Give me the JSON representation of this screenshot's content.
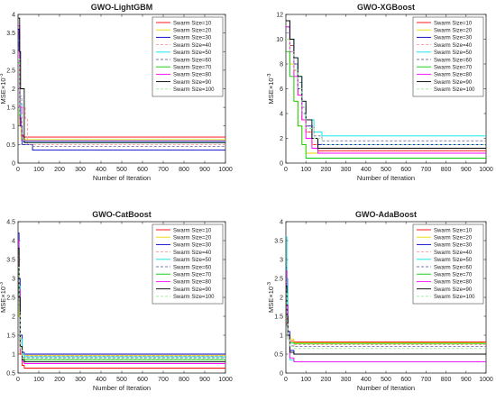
{
  "figure": {
    "background": "#ffffff"
  },
  "legend_labels": [
    "Swarm Size=10",
    "Swarm Size=20",
    "Swarm Size=30",
    "Swarm Size=40",
    "Swarm Size=50",
    "Swarm Size=60",
    "Swarm Size=70",
    "Swarm Size=80",
    "Swarm Size=90",
    "Swarm Size=100"
  ],
  "series_styles": [
    {
      "color": "#ff0000",
      "dash": "solid"
    },
    {
      "color": "#e6d800",
      "dash": "solid"
    },
    {
      "color": "#0000cc",
      "dash": "solid"
    },
    {
      "color": "#ff9999",
      "dash": "dashed"
    },
    {
      "color": "#00e5e5",
      "dash": "solid"
    },
    {
      "color": "#7777aa",
      "dash": "dashed"
    },
    {
      "color": "#00cc00",
      "dash": "solid"
    },
    {
      "color": "#ff00ff",
      "dash": "solid"
    },
    {
      "color": "#000000",
      "dash": "solid"
    },
    {
      "color": "#99ee99",
      "dash": "dashed"
    }
  ],
  "chart_data": [
    {
      "type": "line",
      "title": "GWO-LightGBM",
      "xlabel": "Number of Iteration",
      "ylabel_main": "MSE",
      "ylabel_scale": "×10",
      "ylabel_exp": "-3",
      "xlim": [
        0,
        1000
      ],
      "ylim": [
        0,
        4
      ],
      "xticks": [
        0,
        100,
        200,
        300,
        400,
        500,
        600,
        700,
        800,
        900,
        1000
      ],
      "yticks": [
        0,
        0.5,
        1,
        1.5,
        2,
        2.5,
        3,
        3.5,
        4
      ],
      "yticklabels": [
        "0",
        "0.5",
        "1",
        "1.5",
        "2",
        "2.5",
        "3",
        "3.5",
        "4"
      ],
      "legend_position": "top-right",
      "series": [
        {
          "name": "Swarm Size=10",
          "x": [
            0,
            8,
            15,
            25,
            1000
          ],
          "y": [
            3.5,
            1.2,
            0.75,
            0.7,
            0.7
          ]
        },
        {
          "name": "Swarm Size=20",
          "x": [
            0,
            8,
            15,
            25,
            1000
          ],
          "y": [
            2.5,
            1.0,
            0.66,
            0.63,
            0.63
          ]
        },
        {
          "name": "Swarm Size=30",
          "x": [
            0,
            5,
            10,
            20,
            60,
            70,
            1000
          ],
          "y": [
            3.6,
            3.0,
            1.0,
            0.5,
            0.5,
            0.35,
            0.35
          ]
        },
        {
          "name": "Swarm Size=40",
          "x": [
            0,
            10,
            20,
            30,
            35,
            45,
            1000
          ],
          "y": [
            3.0,
            1.5,
            1.5,
            1.5,
            1.2,
            0.5,
            0.5
          ]
        },
        {
          "name": "Swarm Size=50",
          "x": [
            0,
            8,
            18,
            1000
          ],
          "y": [
            3.3,
            1.6,
            0.58,
            0.58
          ]
        },
        {
          "name": "Swarm Size=60",
          "x": [
            0,
            8,
            18,
            60,
            70,
            1000
          ],
          "y": [
            3.1,
            1.8,
            0.5,
            0.5,
            0.45,
            0.45
          ]
        },
        {
          "name": "Swarm Size=70",
          "x": [
            0,
            8,
            18,
            1000
          ],
          "y": [
            2.7,
            1.3,
            0.6,
            0.6
          ]
        },
        {
          "name": "Swarm Size=80",
          "x": [
            0,
            8,
            18,
            1000
          ],
          "y": [
            3.7,
            1.5,
            0.6,
            0.6
          ]
        },
        {
          "name": "Swarm Size=90",
          "x": [
            0,
            8,
            12,
            20,
            30,
            1000
          ],
          "y": [
            3.9,
            3.0,
            2.0,
            2.0,
            0.55,
            0.55
          ]
        },
        {
          "name": "Swarm Size=100",
          "x": [
            0,
            8,
            18,
            1000
          ],
          "y": [
            2.8,
            1.3,
            0.62,
            0.62
          ]
        }
      ]
    },
    {
      "type": "line",
      "title": "GWO-XGBoost",
      "xlabel": "Number of Iteration",
      "ylabel_main": "MSE",
      "ylabel_scale": "×10",
      "ylabel_exp": "-3",
      "xlim": [
        0,
        1000
      ],
      "ylim": [
        0,
        12
      ],
      "xticks": [
        0,
        100,
        200,
        300,
        400,
        500,
        600,
        700,
        800,
        900,
        1000
      ],
      "yticks": [
        0,
        2,
        4,
        6,
        8,
        10,
        12
      ],
      "yticklabels": [
        "0",
        "2",
        "4",
        "6",
        "8",
        "10",
        "12"
      ],
      "legend_position": "top-right",
      "series": [
        {
          "name": "Swarm Size=10",
          "x": [
            0,
            20,
            40,
            60,
            80,
            100,
            130,
            160,
            200,
            1000
          ],
          "y": [
            11,
            9.5,
            7.5,
            5.5,
            3.5,
            2.5,
            1.5,
            1.0,
            1.0,
            1.0
          ]
        },
        {
          "name": "Swarm Size=20",
          "x": [
            0,
            20,
            40,
            60,
            80,
            100,
            1000
          ],
          "y": [
            10,
            8,
            5,
            3,
            1.5,
            0.8,
            0.8
          ]
        },
        {
          "name": "Swarm Size=30",
          "x": [
            0,
            20,
            40,
            60,
            80,
            100,
            130,
            160,
            200,
            1000
          ],
          "y": [
            11.5,
            10,
            8,
            6,
            4,
            3,
            2,
            1.5,
            1.5,
            1.5
          ]
        },
        {
          "name": "Swarm Size=40",
          "x": [
            0,
            20,
            40,
            60,
            80,
            100,
            130,
            160,
            1000
          ],
          "y": [
            10,
            9,
            7.5,
            5.5,
            3.5,
            2.5,
            1.5,
            1.2,
            1.2
          ]
        },
        {
          "name": "Swarm Size=50",
          "x": [
            0,
            20,
            40,
            60,
            80,
            100,
            140,
            180,
            220,
            1000
          ],
          "y": [
            11,
            10,
            8.5,
            7,
            5,
            3.5,
            2.5,
            2.2,
            2.2,
            2.2
          ]
        },
        {
          "name": "Swarm Size=60",
          "x": [
            0,
            20,
            40,
            60,
            80,
            100,
            140,
            180,
            1000
          ],
          "y": [
            10.5,
            9.5,
            8,
            6.5,
            4.5,
            3,
            2.2,
            1.8,
            1.8
          ]
        },
        {
          "name": "Swarm Size=70",
          "x": [
            0,
            20,
            40,
            60,
            80,
            100,
            1000
          ],
          "y": [
            9,
            7,
            5,
            3,
            1.5,
            0.4,
            0.4
          ]
        },
        {
          "name": "Swarm Size=80",
          "x": [
            0,
            20,
            40,
            60,
            80,
            100,
            130,
            160,
            1000
          ],
          "y": [
            11,
            9,
            7,
            5.5,
            3.5,
            2,
            1.2,
            0.8,
            0.8
          ]
        },
        {
          "name": "Swarm Size=90",
          "x": [
            0,
            20,
            40,
            60,
            80,
            100,
            130,
            160,
            1000
          ],
          "y": [
            11.5,
            10,
            8.5,
            7,
            5,
            3.5,
            2,
            1.2,
            1.2
          ]
        },
        {
          "name": "Swarm Size=100",
          "x": [
            0,
            20,
            40,
            60,
            80,
            100,
            140,
            180,
            1000
          ],
          "y": [
            10,
            9,
            7.5,
            6,
            4,
            2.8,
            2,
            1.5,
            1.5
          ]
        }
      ]
    },
    {
      "type": "line",
      "title": "GWO-CatBoost",
      "xlabel": "Number of Iteration",
      "ylabel_main": "MSE",
      "ylabel_scale": "×10",
      "ylabel_exp": "-3",
      "xlim": [
        0,
        1000
      ],
      "ylim": [
        0.5,
        4.5
      ],
      "xticks": [
        0,
        100,
        200,
        300,
        400,
        500,
        600,
        700,
        800,
        900,
        1000
      ],
      "yticks": [
        0.5,
        1,
        1.5,
        2,
        2.5,
        3,
        3.5,
        4,
        4.5
      ],
      "yticklabels": [
        "0.5",
        "1",
        "1.5",
        "2",
        "2.5",
        "3",
        "3.5",
        "4",
        "4.5"
      ],
      "legend_position": "top-right",
      "series": [
        {
          "name": "Swarm Size=10",
          "x": [
            0,
            5,
            10,
            20,
            30,
            1000
          ],
          "y": [
            3.8,
            2.5,
            1.0,
            0.7,
            0.63,
            0.63
          ]
        },
        {
          "name": "Swarm Size=20",
          "x": [
            0,
            5,
            10,
            20,
            30,
            1000
          ],
          "y": [
            3.5,
            2.0,
            1.2,
            1.0,
            0.97,
            0.97
          ]
        },
        {
          "name": "Swarm Size=30",
          "x": [
            0,
            5,
            10,
            20,
            30,
            1000
          ],
          "y": [
            4.2,
            3.0,
            1.5,
            1.05,
            1.0,
            1.0
          ]
        },
        {
          "name": "Swarm Size=40",
          "x": [
            0,
            5,
            10,
            20,
            30,
            1000
          ],
          "y": [
            3.6,
            2.4,
            1.3,
            1.0,
            0.95,
            0.95
          ]
        },
        {
          "name": "Swarm Size=50",
          "x": [
            0,
            5,
            10,
            20,
            30,
            1000
          ],
          "y": [
            3.9,
            2.8,
            1.4,
            1.0,
            0.93,
            0.93
          ]
        },
        {
          "name": "Swarm Size=60",
          "x": [
            0,
            5,
            10,
            20,
            30,
            1000
          ],
          "y": [
            3.4,
            2.2,
            1.2,
            0.92,
            0.9,
            0.9
          ]
        },
        {
          "name": "Swarm Size=70",
          "x": [
            0,
            5,
            10,
            20,
            30,
            1000
          ],
          "y": [
            3.7,
            2.6,
            1.2,
            0.9,
            0.85,
            0.85
          ]
        },
        {
          "name": "Swarm Size=80",
          "x": [
            0,
            5,
            10,
            20,
            30,
            1000
          ],
          "y": [
            4.0,
            2.7,
            1.1,
            0.8,
            0.75,
            0.75
          ]
        },
        {
          "name": "Swarm Size=90",
          "x": [
            0,
            5,
            10,
            20,
            30,
            1000
          ],
          "y": [
            3.8,
            2.5,
            1.2,
            0.85,
            0.8,
            0.8
          ]
        },
        {
          "name": "Swarm Size=100",
          "x": [
            0,
            5,
            10,
            20,
            30,
            1000
          ],
          "y": [
            3.3,
            2.1,
            1.1,
            0.9,
            0.88,
            0.88
          ]
        }
      ]
    },
    {
      "type": "line",
      "title": "GWO-AdaBoost",
      "xlabel": "Number of Iteration",
      "ylabel_main": "MSE",
      "ylabel_scale": "×10",
      "ylabel_exp": "-3",
      "xlim": [
        0,
        1000
      ],
      "ylim": [
        0,
        4
      ],
      "xticks": [
        0,
        100,
        200,
        300,
        400,
        500,
        600,
        700,
        800,
        900,
        1000
      ],
      "yticks": [
        0,
        0.5,
        1,
        1.5,
        2,
        2.5,
        3,
        3.5,
        4
      ],
      "yticklabels": [
        "0",
        "0.5",
        "1",
        "1.5",
        "2",
        "2.5",
        "3",
        "3.5",
        "4"
      ],
      "legend_position": "top-right",
      "series": [
        {
          "name": "Swarm Size=10",
          "x": [
            0,
            5,
            10,
            20,
            40,
            1000
          ],
          "y": [
            2.0,
            1.3,
            1.0,
            0.85,
            0.82,
            0.82
          ]
        },
        {
          "name": "Swarm Size=20",
          "x": [
            0,
            5,
            10,
            20,
            40,
            1000
          ],
          "y": [
            2.4,
            1.5,
            1.0,
            0.9,
            0.8,
            0.8
          ]
        },
        {
          "name": "Swarm Size=30",
          "x": [
            0,
            5,
            10,
            20,
            40,
            1000
          ],
          "y": [
            2.8,
            1.8,
            1.1,
            0.6,
            0.5,
            0.5
          ]
        },
        {
          "name": "Swarm Size=40",
          "x": [
            0,
            5,
            10,
            20,
            40,
            1000
          ],
          "y": [
            2.2,
            1.4,
            0.9,
            0.8,
            0.75,
            0.75
          ]
        },
        {
          "name": "Swarm Size=50",
          "x": [
            0,
            5,
            10,
            20,
            40,
            1000
          ],
          "y": [
            3.6,
            2.5,
            1.0,
            0.35,
            0.3,
            0.3
          ]
        },
        {
          "name": "Swarm Size=60",
          "x": [
            0,
            5,
            10,
            20,
            40,
            1000
          ],
          "y": [
            2.0,
            1.2,
            0.9,
            0.72,
            0.7,
            0.7
          ]
        },
        {
          "name": "Swarm Size=70",
          "x": [
            0,
            5,
            10,
            20,
            40,
            1000
          ],
          "y": [
            2.5,
            1.6,
            1.0,
            0.8,
            0.78,
            0.78
          ]
        },
        {
          "name": "Swarm Size=80",
          "x": [
            0,
            5,
            10,
            20,
            40,
            1000
          ],
          "y": [
            2.7,
            1.8,
            1.0,
            0.4,
            0.3,
            0.3
          ]
        },
        {
          "name": "Swarm Size=90",
          "x": [
            0,
            5,
            10,
            20,
            40,
            1000
          ],
          "y": [
            2.3,
            1.5,
            1.0,
            0.55,
            0.5,
            0.5
          ]
        },
        {
          "name": "Swarm Size=100",
          "x": [
            0,
            5,
            10,
            20,
            40,
            1000
          ],
          "y": [
            2.1,
            1.3,
            0.9,
            0.7,
            0.65,
            0.65
          ]
        }
      ]
    }
  ]
}
